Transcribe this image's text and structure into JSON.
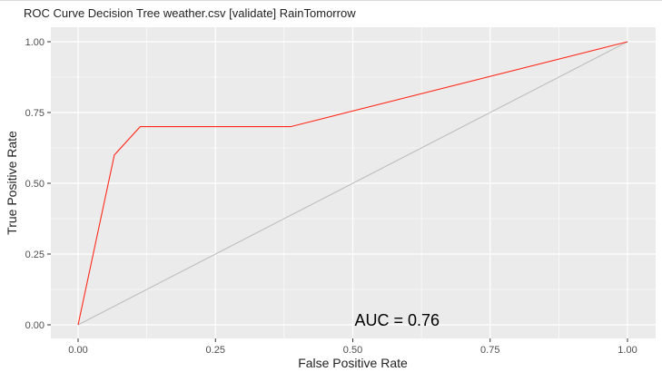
{
  "chart_data": {
    "type": "line",
    "title": "ROC Curve Decision Tree weather.csv [validate] RainTomorrow",
    "xlabel": "False Positive Rate",
    "ylabel": "True Positive Rate",
    "xlim": [
      0,
      1
    ],
    "ylim": [
      0,
      1
    ],
    "x_ticks": [
      0,
      0.25,
      0.5,
      0.75,
      1
    ],
    "x_tick_labels": [
      "0.00",
      "0.25",
      "0.50",
      "0.75",
      "1.00"
    ],
    "y_ticks": [
      0,
      0.25,
      0.5,
      0.75,
      1
    ],
    "y_tick_labels": [
      "0.00",
      "0.25",
      "0.50",
      "0.75",
      "1.00"
    ],
    "grid": true,
    "series": [
      {
        "color": "#ff2a1a",
        "points": [
          [
            0,
            0
          ],
          [
            0.066,
            0.6
          ],
          [
            0.113,
            0.7
          ],
          [
            0.387,
            0.7
          ],
          [
            1,
            1
          ]
        ]
      },
      {
        "color": "#bebebe",
        "points": [
          [
            0,
            0
          ],
          [
            1,
            1
          ]
        ]
      }
    ],
    "annotation": {
      "text": "AUC = 0.76",
      "x": 0.5,
      "y": 0.0
    },
    "panel_background": "#ebebeb",
    "grid_color": "#ffffff"
  }
}
